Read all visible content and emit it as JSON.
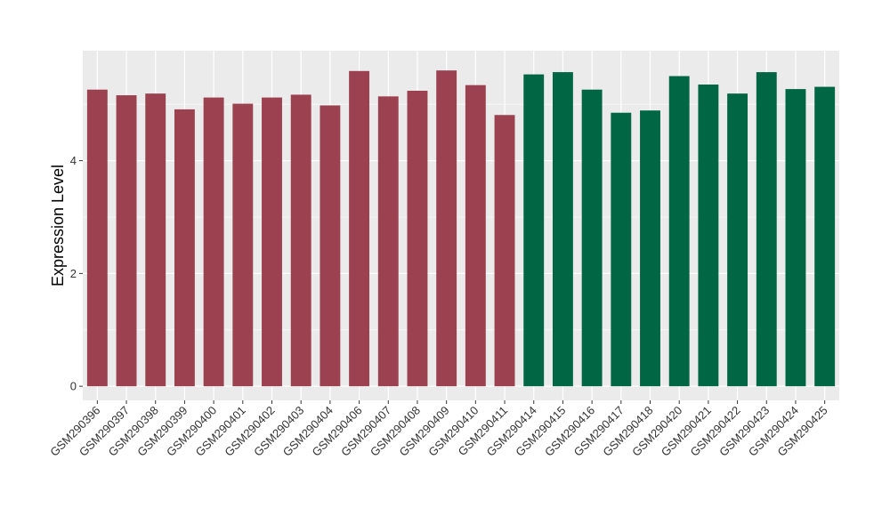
{
  "chart_data": {
    "type": "bar",
    "title": "",
    "xlabel": "",
    "ylabel": "Expression Level",
    "ylim": [
      -0.25,
      5.95
    ],
    "yticks": [
      0,
      2,
      4
    ],
    "grid": true,
    "legend": "none",
    "panel_background": "#ebebeb",
    "gridline_color": "#ffffff",
    "colors": {
      "group1": "#9b4150",
      "group2": "#006644"
    },
    "categories": [
      "GSM290396",
      "GSM290397",
      "GSM290398",
      "GSM290399",
      "GSM290400",
      "GSM290401",
      "GSM290402",
      "GSM290403",
      "GSM290404",
      "GSM290406",
      "GSM290407",
      "GSM290408",
      "GSM290409",
      "GSM290410",
      "GSM290411",
      "GSM290414",
      "GSM290415",
      "GSM290416",
      "GSM290417",
      "GSM290418",
      "GSM290420",
      "GSM290421",
      "GSM290422",
      "GSM290423",
      "GSM290424",
      "GSM290425"
    ],
    "values": [
      5.26,
      5.16,
      5.19,
      4.91,
      5.12,
      5.01,
      5.12,
      5.17,
      4.98,
      5.59,
      5.14,
      5.24,
      5.6,
      5.34,
      4.81,
      5.53,
      5.57,
      5.26,
      4.85,
      4.89,
      5.5,
      5.35,
      5.19,
      5.57,
      5.27,
      5.31
    ],
    "groups": [
      "group1",
      "group1",
      "group1",
      "group1",
      "group1",
      "group1",
      "group1",
      "group1",
      "group1",
      "group1",
      "group1",
      "group1",
      "group1",
      "group1",
      "group1",
      "group2",
      "group2",
      "group2",
      "group2",
      "group2",
      "group2",
      "group2",
      "group2",
      "group2",
      "group2",
      "group2"
    ]
  }
}
